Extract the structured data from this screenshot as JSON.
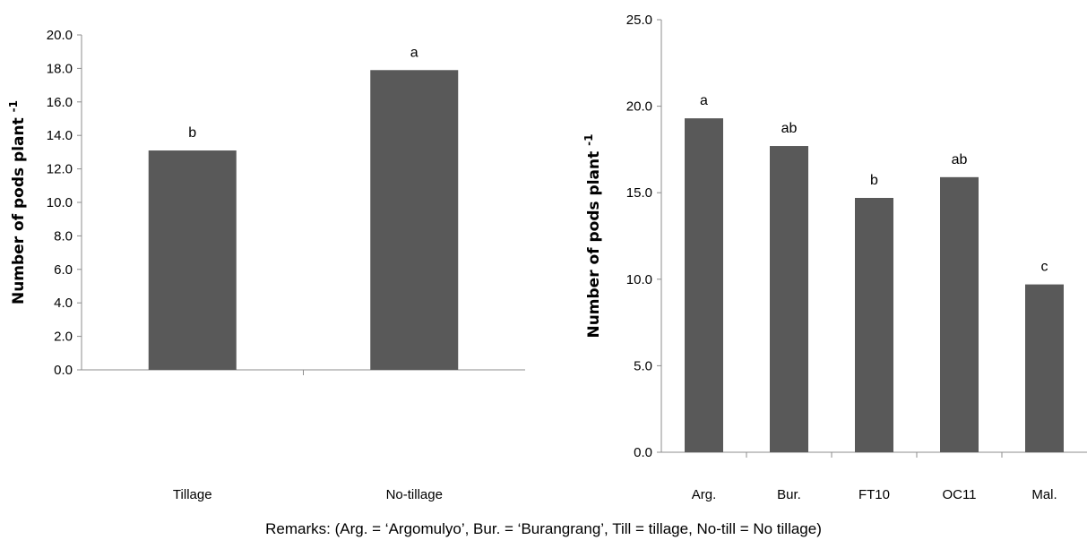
{
  "chart_data": [
    {
      "type": "bar",
      "categories": [
        "Tillage",
        "No-tillage"
      ],
      "values": [
        13.1,
        17.9
      ],
      "letters": [
        "b",
        "a"
      ],
      "ylabel": "Number of pods plant",
      "ylabel_sup": "-1",
      "ylim": [
        0,
        20
      ],
      "yticks": [
        "0.0",
        "2.0",
        "4.0",
        "6.0",
        "8.0",
        "10.0",
        "12.0",
        "14.0",
        "16.0",
        "18.0",
        "20.0"
      ],
      "grid": false
    },
    {
      "type": "bar",
      "categories": [
        "Arg.",
        "Bur.",
        "FT10",
        "OC11",
        "Mal."
      ],
      "values": [
        19.3,
        17.7,
        14.7,
        15.9,
        9.7
      ],
      "letters": [
        "a",
        "ab",
        "b",
        "ab",
        "c"
      ],
      "ylabel": "Number of pods plant",
      "ylabel_sup": "-1",
      "ylim": [
        0,
        25
      ],
      "yticks": [
        "0.0",
        "5.0",
        "10.0",
        "15.0",
        "20.0",
        "25.0"
      ],
      "grid": false
    }
  ],
  "remarks": "Remarks: (Arg. = ‘Argomulyo’, Bur. = ‘Burangrang’, Till = tillage, No-till = No tillage)",
  "colors": {
    "bar": "#595959",
    "axis": "#8c8c8c"
  }
}
